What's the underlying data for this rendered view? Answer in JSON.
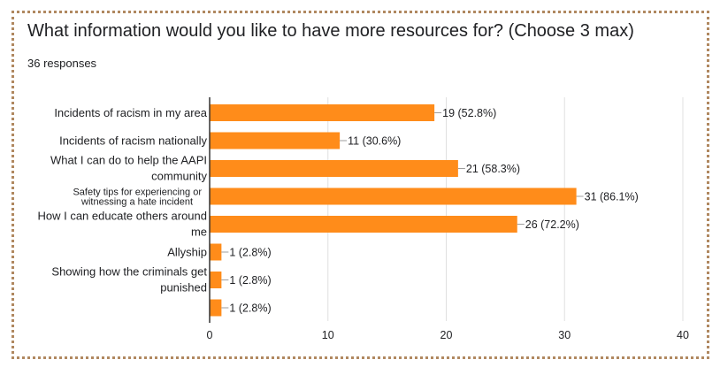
{
  "form": {
    "question": "What information would you like to have more resources for? (Choose 3 max)",
    "responses": "36 responses"
  },
  "chart_data": {
    "type": "bar",
    "orientation": "horizontal",
    "categories": [
      [
        "Incidents of racism in my area"
      ],
      [
        "Incidents of racism nationally"
      ],
      [
        "What I can do to help the AAPI",
        "community"
      ],
      [
        "Safety tips for experiencing or",
        "witnessing a hate incident"
      ],
      [
        "How I can educate others around",
        "me"
      ],
      [
        "Allyship"
      ],
      [
        "Showing how the criminals get",
        "punished"
      ],
      [
        ""
      ]
    ],
    "values": [
      19,
      11,
      21,
      31,
      26,
      1,
      1,
      1
    ],
    "data_labels": [
      "19 (52.8%)",
      "11 (30.6%)",
      "21 (58.3%)",
      "31 (86.1%)",
      "26 (72.2%)",
      "1 (2.8%)",
      "1 (2.8%)",
      "1 (2.8%)"
    ],
    "xticks": [
      0,
      10,
      20,
      30,
      40
    ],
    "xlim": [
      0,
      40
    ],
    "grid": true,
    "bar_color": "#ff8c1a"
  }
}
